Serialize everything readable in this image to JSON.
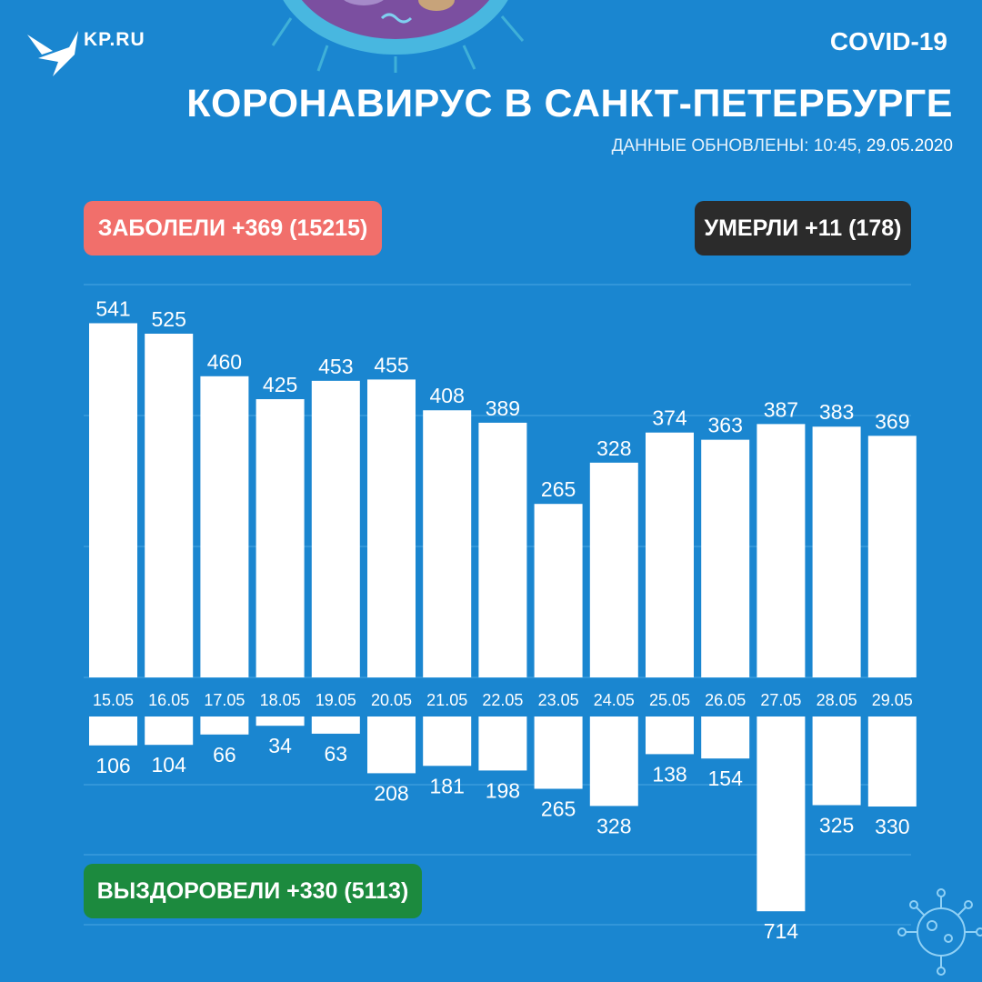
{
  "header": {
    "logo_text": "KP.RU",
    "tag": "COVID-19",
    "title": "КОРОНАВИРУС В САНКТ-ПЕТЕРБУРГЕ",
    "updated_prefix": "ДАННЫЕ ОБНОВЛЕНЫ: 10:45, ",
    "updated_date": "29.05.2020"
  },
  "badges": {
    "sick": "ЗАБОЛЕЛИ +369 (15215)",
    "dead": "УМЕРЛИ +11 (178)",
    "recovered": "ВЫЗДОРОВЕЛИ +330 (5113)"
  },
  "colors": {
    "background": "#1a86d0",
    "sick": "#f16f6b",
    "dead": "#2b2b2b",
    "recovered": "#1c8a3e",
    "bars": "#ffffff"
  },
  "chart_data": {
    "type": "bar",
    "categories": [
      "15.05",
      "16.05",
      "17.05",
      "18.05",
      "19.05",
      "20.05",
      "21.05",
      "22.05",
      "23.05",
      "24.05",
      "25.05",
      "26.05",
      "27.05",
      "28.05",
      "29.05"
    ],
    "series": [
      {
        "name": "ЗАБОЛЕЛИ",
        "direction": "up",
        "values": [
          541,
          525,
          460,
          425,
          453,
          455,
          408,
          389,
          265,
          328,
          374,
          363,
          387,
          383,
          369
        ]
      },
      {
        "name": "ВЫЗДОРОВЕЛИ",
        "direction": "down",
        "values": [
          106,
          104,
          66,
          34,
          63,
          208,
          181,
          198,
          265,
          328,
          138,
          154,
          714,
          325,
          330
        ]
      }
    ],
    "grid": true
  }
}
